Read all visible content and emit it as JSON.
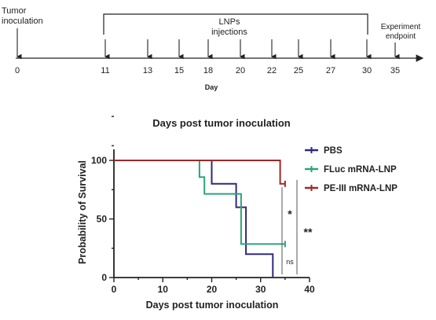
{
  "timeline": {
    "start_label": "Tumor inoculation",
    "bracket_label": "LNPs injections",
    "end_label": "Experiment endpoint",
    "axis_title": "Day",
    "ticks": [
      "0",
      "11",
      "13",
      "15",
      "18",
      "20",
      "22",
      "25",
      "27",
      "30",
      "35"
    ]
  },
  "chart_data": {
    "type": "line",
    "title": "Days post tumor inoculation",
    "xlabel": "Days post tumor inoculation",
    "ylabel": "Probability of Survival",
    "xlim": [
      0,
      40
    ],
    "ylim": [
      0,
      100
    ],
    "xticks": [
      "0",
      "10",
      "20",
      "30",
      "40"
    ],
    "yticks": [
      "0",
      "50",
      "100"
    ],
    "legend_position": "right",
    "series": [
      {
        "name": "PBS",
        "color": "#2e2a7a",
        "points": [
          [
            0,
            100
          ],
          [
            20,
            100
          ],
          [
            20,
            80
          ],
          [
            25,
            80
          ],
          [
            25,
            60
          ],
          [
            27,
            60
          ],
          [
            27,
            20
          ],
          [
            32.5,
            20
          ],
          [
            32.5,
            0
          ]
        ]
      },
      {
        "name": "FLuc mRNA-LNP",
        "color": "#2fa37a",
        "points": [
          [
            0,
            100
          ],
          [
            17.5,
            100
          ],
          [
            17.5,
            85.7
          ],
          [
            18.5,
            85.7
          ],
          [
            18.5,
            71.4
          ],
          [
            26,
            71.4
          ],
          [
            26,
            28.6
          ],
          [
            35,
            28.6
          ]
        ]
      },
      {
        "name": "PE-III mRNA-LNP",
        "color": "#a0282a",
        "points": [
          [
            0,
            100
          ],
          [
            34,
            100
          ],
          [
            34,
            80
          ],
          [
            35,
            80
          ]
        ]
      }
    ],
    "annotations": [
      "*",
      "**",
      "ns"
    ]
  }
}
